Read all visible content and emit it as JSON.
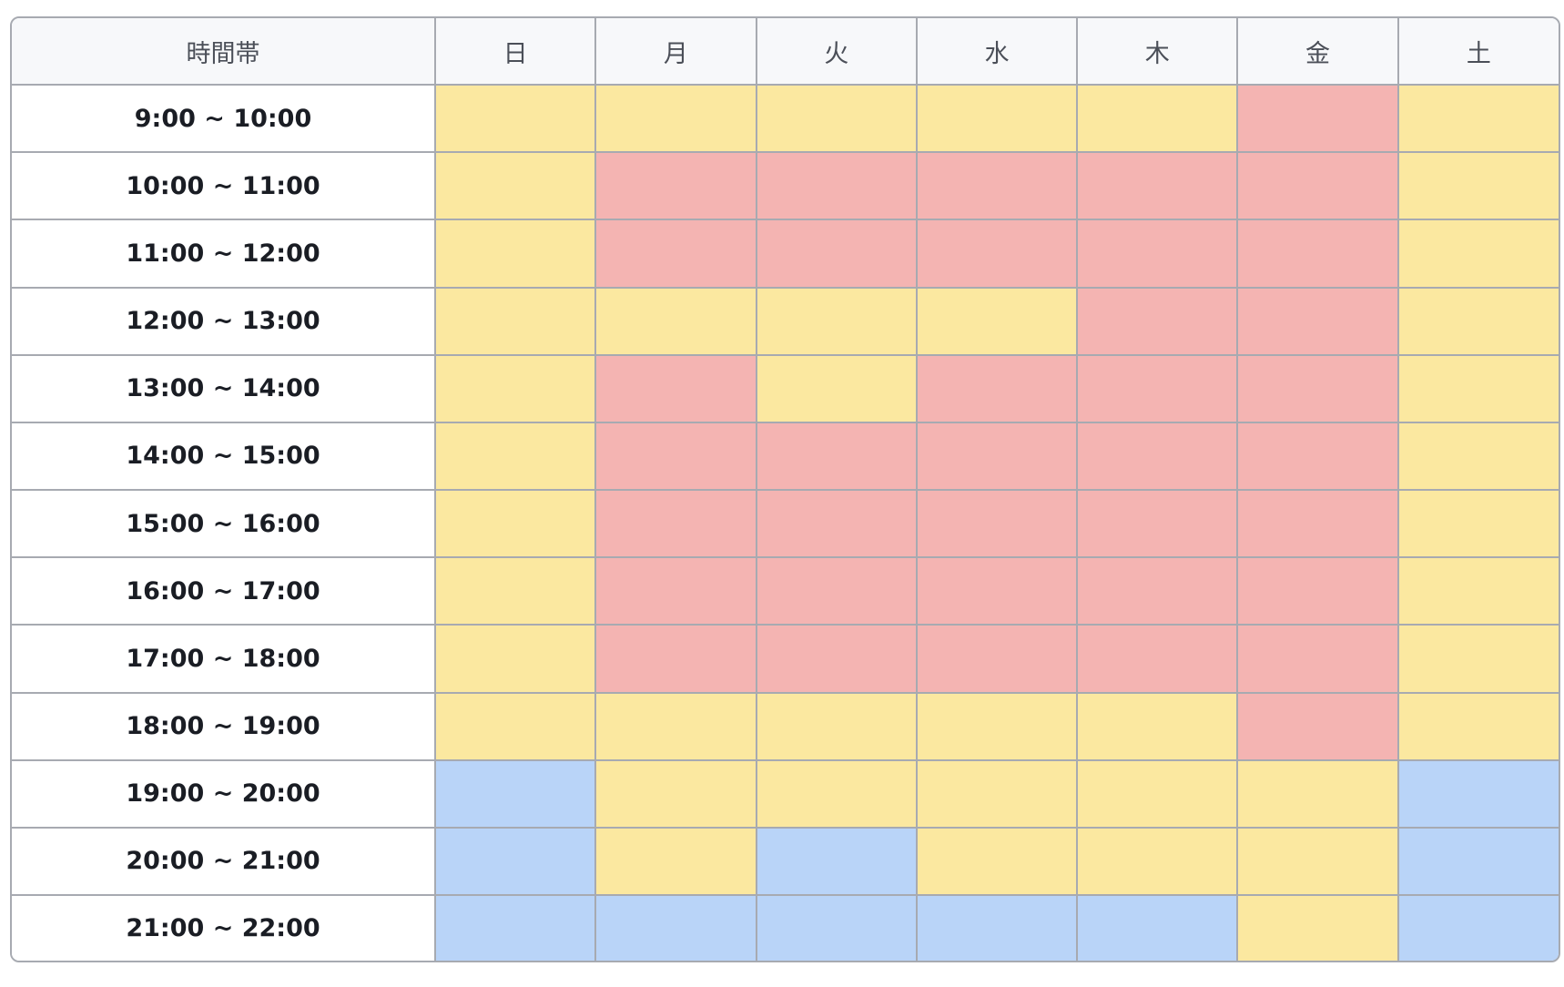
{
  "header": {
    "time_label": "時間帯",
    "days": [
      "日",
      "月",
      "火",
      "水",
      "木",
      "金",
      "土"
    ]
  },
  "legend_colors": {
    "busy": "#f4b4b2",
    "partial": "#fbe8a0",
    "free": "#b9d4f8"
  },
  "rows": [
    {
      "time": "9:00 ~ 10:00",
      "cells": [
        "partial",
        "partial",
        "partial",
        "partial",
        "partial",
        "busy",
        "partial"
      ]
    },
    {
      "time": "10:00 ~ 11:00",
      "cells": [
        "partial",
        "busy",
        "busy",
        "busy",
        "busy",
        "busy",
        "partial"
      ]
    },
    {
      "time": "11:00 ~ 12:00",
      "cells": [
        "partial",
        "busy",
        "busy",
        "busy",
        "busy",
        "busy",
        "partial"
      ]
    },
    {
      "time": "12:00 ~ 13:00",
      "cells": [
        "partial",
        "partial",
        "partial",
        "partial",
        "busy",
        "busy",
        "partial"
      ]
    },
    {
      "time": "13:00 ~ 14:00",
      "cells": [
        "partial",
        "busy",
        "partial",
        "busy",
        "busy",
        "busy",
        "partial"
      ]
    },
    {
      "time": "14:00 ~ 15:00",
      "cells": [
        "partial",
        "busy",
        "busy",
        "busy",
        "busy",
        "busy",
        "partial"
      ]
    },
    {
      "time": "15:00 ~ 16:00",
      "cells": [
        "partial",
        "busy",
        "busy",
        "busy",
        "busy",
        "busy",
        "partial"
      ]
    },
    {
      "time": "16:00 ~ 17:00",
      "cells": [
        "partial",
        "busy",
        "busy",
        "busy",
        "busy",
        "busy",
        "partial"
      ]
    },
    {
      "time": "17:00 ~ 18:00",
      "cells": [
        "partial",
        "busy",
        "busy",
        "busy",
        "busy",
        "busy",
        "partial"
      ]
    },
    {
      "time": "18:00 ~ 19:00",
      "cells": [
        "partial",
        "partial",
        "partial",
        "partial",
        "partial",
        "busy",
        "partial"
      ]
    },
    {
      "time": "19:00 ~ 20:00",
      "cells": [
        "free",
        "partial",
        "partial",
        "partial",
        "partial",
        "partial",
        "free"
      ]
    },
    {
      "time": "20:00 ~ 21:00",
      "cells": [
        "free",
        "partial",
        "free",
        "partial",
        "partial",
        "partial",
        "free"
      ]
    },
    {
      "time": "21:00 ~ 22:00",
      "cells": [
        "free",
        "free",
        "free",
        "free",
        "free",
        "partial",
        "free"
      ]
    }
  ]
}
